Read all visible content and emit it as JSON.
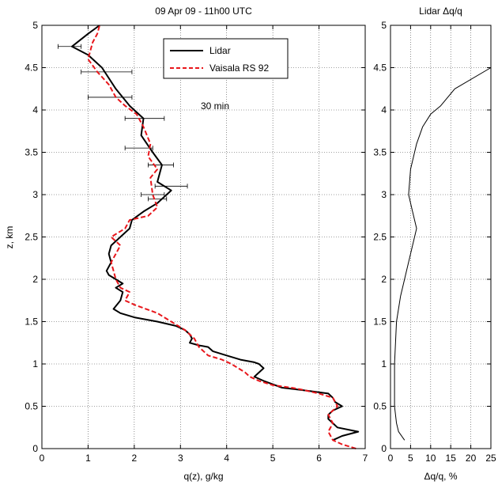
{
  "chart_data": [
    {
      "type": "line",
      "title": "09 Apr 09 - 11h00 UTC",
      "xlabel": "q(z), g/kg",
      "ylabel": "z, km",
      "xlim": [
        0,
        7
      ],
      "ylim": [
        0,
        5
      ],
      "xticks": [
        0,
        1,
        2,
        3,
        4,
        5,
        6,
        7
      ],
      "yticks": [
        0,
        0.5,
        1,
        1.5,
        2,
        2.5,
        3,
        3.5,
        4,
        4.5,
        5
      ],
      "grid": true,
      "legend_placement": "top-center",
      "annotation": "30 min",
      "series": [
        {
          "name": "Lidar",
          "color": "#000000",
          "style": "solid",
          "points": [
            [
              6.3,
              0.1
            ],
            [
              6.5,
              0.15
            ],
            [
              6.85,
              0.2
            ],
            [
              6.4,
              0.25
            ],
            [
              6.3,
              0.3
            ],
            [
              6.2,
              0.35
            ],
            [
              6.2,
              0.4
            ],
            [
              6.3,
              0.45
            ],
            [
              6.5,
              0.5
            ],
            [
              6.35,
              0.55
            ],
            [
              6.3,
              0.6
            ],
            [
              6.2,
              0.65
            ],
            [
              5.8,
              0.68
            ],
            [
              5.2,
              0.72
            ],
            [
              4.8,
              0.8
            ],
            [
              4.6,
              0.85
            ],
            [
              4.8,
              0.95
            ],
            [
              4.7,
              1.0
            ],
            [
              4.6,
              1.02
            ],
            [
              4.3,
              1.05
            ],
            [
              4.0,
              1.1
            ],
            [
              3.7,
              1.15
            ],
            [
              3.6,
              1.2
            ],
            [
              3.4,
              1.22
            ],
            [
              3.2,
              1.25
            ],
            [
              3.25,
              1.3
            ],
            [
              3.2,
              1.35
            ],
            [
              3.1,
              1.4
            ],
            [
              2.9,
              1.45
            ],
            [
              2.5,
              1.5
            ],
            [
              2.0,
              1.55
            ],
            [
              1.7,
              1.6
            ],
            [
              1.55,
              1.65
            ],
            [
              1.7,
              1.75
            ],
            [
              1.75,
              1.85
            ],
            [
              1.6,
              1.9
            ],
            [
              1.75,
              1.95
            ],
            [
              1.6,
              2.0
            ],
            [
              1.45,
              2.05
            ],
            [
              1.4,
              2.1
            ],
            [
              1.5,
              2.2
            ],
            [
              1.45,
              2.3
            ],
            [
              1.5,
              2.4
            ],
            [
              1.7,
              2.5
            ],
            [
              1.9,
              2.6
            ],
            [
              1.95,
              2.7
            ],
            [
              2.2,
              2.8
            ],
            [
              2.5,
              2.9
            ],
            [
              2.8,
              3.05
            ],
            [
              2.5,
              3.15
            ],
            [
              2.6,
              3.35
            ],
            [
              2.4,
              3.5
            ],
            [
              2.15,
              3.7
            ],
            [
              2.2,
              3.9
            ],
            [
              1.9,
              4.05
            ],
            [
              1.6,
              4.25
            ],
            [
              1.3,
              4.5
            ],
            [
              1.0,
              4.65
            ],
            [
              0.65,
              4.75
            ],
            [
              1.0,
              4.9
            ],
            [
              1.25,
              5.0
            ]
          ],
          "error_bars": [
            {
              "y": 4.75,
              "low": 0.35,
              "high": 0.85
            },
            {
              "y": 4.45,
              "low": 0.85,
              "high": 1.95
            },
            {
              "y": 4.15,
              "low": 1.0,
              "high": 1.95
            },
            {
              "y": 3.9,
              "low": 1.8,
              "high": 2.65
            },
            {
              "y": 3.55,
              "low": 1.8,
              "high": 2.4
            },
            {
              "y": 3.35,
              "low": 2.3,
              "high": 2.85
            },
            {
              "y": 3.1,
              "low": 2.45,
              "high": 3.15
            },
            {
              "y": 2.95,
              "low": 2.3,
              "high": 2.7
            },
            {
              "y": 3.0,
              "low": 2.15,
              "high": 2.65
            }
          ]
        },
        {
          "name": "Vaisala RS 92",
          "color": "#e8161b",
          "style": "dashed",
          "points": [
            [
              6.8,
              0.0
            ],
            [
              6.5,
              0.05
            ],
            [
              6.3,
              0.1
            ],
            [
              6.2,
              0.2
            ],
            [
              6.3,
              0.3
            ],
            [
              6.2,
              0.4
            ],
            [
              6.4,
              0.5
            ],
            [
              6.3,
              0.6
            ],
            [
              6.0,
              0.65
            ],
            [
              5.6,
              0.7
            ],
            [
              5.4,
              0.72
            ],
            [
              5.0,
              0.75
            ],
            [
              4.7,
              0.8
            ],
            [
              4.5,
              0.85
            ],
            [
              4.4,
              0.9
            ],
            [
              4.1,
              1.0
            ],
            [
              3.9,
              1.05
            ],
            [
              3.6,
              1.1
            ],
            [
              3.4,
              1.2
            ],
            [
              3.3,
              1.3
            ],
            [
              3.1,
              1.4
            ],
            [
              2.8,
              1.5
            ],
            [
              2.5,
              1.6
            ],
            [
              2.0,
              1.7
            ],
            [
              1.8,
              1.75
            ],
            [
              1.9,
              1.85
            ],
            [
              1.7,
              1.9
            ],
            [
              1.6,
              2.0
            ],
            [
              1.55,
              2.1
            ],
            [
              1.5,
              2.2
            ],
            [
              1.6,
              2.3
            ],
            [
              1.7,
              2.4
            ],
            [
              1.5,
              2.5
            ],
            [
              1.8,
              2.6
            ],
            [
              1.9,
              2.7
            ],
            [
              2.3,
              2.75
            ],
            [
              2.5,
              2.85
            ],
            [
              2.4,
              3.0
            ],
            [
              2.35,
              3.2
            ],
            [
              2.5,
              3.3
            ],
            [
              2.3,
              3.45
            ],
            [
              2.35,
              3.6
            ],
            [
              2.2,
              3.8
            ],
            [
              2.05,
              3.95
            ],
            [
              1.8,
              4.05
            ],
            [
              1.6,
              4.15
            ],
            [
              1.45,
              4.3
            ],
            [
              1.2,
              4.45
            ],
            [
              1.0,
              4.6
            ],
            [
              1.05,
              4.7
            ],
            [
              1.1,
              4.8
            ],
            [
              1.2,
              4.9
            ],
            [
              1.25,
              5.0
            ]
          ]
        }
      ]
    },
    {
      "type": "line",
      "title": "Lidar Δq/q",
      "xlabel": "Δq/q, %",
      "ylabel": "",
      "xlim": [
        0,
        25
      ],
      "ylim": [
        0,
        5
      ],
      "xticks": [
        0,
        5,
        10,
        15,
        20,
        25
      ],
      "yticks": [
        0,
        0.5,
        1,
        1.5,
        2,
        2.5,
        3,
        3.5,
        4,
        4.5,
        5
      ],
      "grid": true,
      "series": [
        {
          "color": "#000000",
          "style": "solid",
          "points": [
            [
              3.5,
              0.1
            ],
            [
              2.0,
              0.2
            ],
            [
              1.5,
              0.3
            ],
            [
              1.0,
              0.5
            ],
            [
              1.0,
              1.0
            ],
            [
              1.5,
              1.5
            ],
            [
              2.5,
              1.8
            ],
            [
              4.0,
              2.1
            ],
            [
              5.5,
              2.4
            ],
            [
              6.5,
              2.6
            ],
            [
              5.5,
              2.8
            ],
            [
              4.5,
              3.0
            ],
            [
              5.0,
              3.3
            ],
            [
              6.5,
              3.6
            ],
            [
              8.0,
              3.8
            ],
            [
              10.0,
              3.95
            ],
            [
              12.5,
              4.05
            ],
            [
              16.0,
              4.25
            ],
            [
              25.0,
              4.5
            ]
          ]
        }
      ]
    }
  ]
}
